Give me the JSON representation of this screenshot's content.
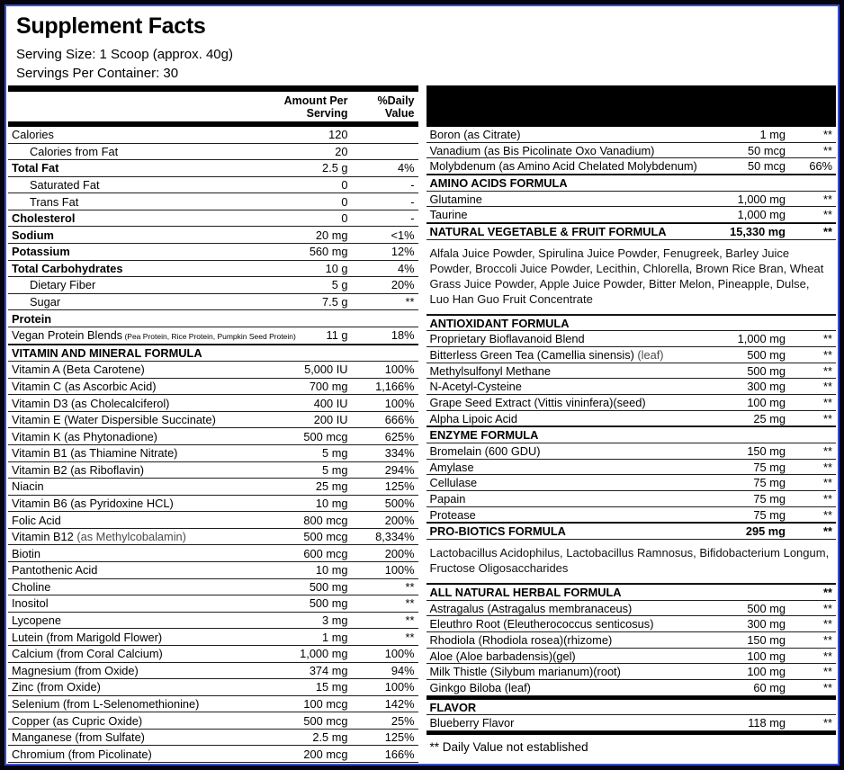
{
  "colors": {
    "border": "#05050f",
    "accent_blue": "#3b4fd0",
    "bar": "#000000"
  },
  "header": {
    "title": "Supplement Facts",
    "serving_size": "Serving Size: 1 Scoop (approx. 40g)",
    "servings_per_container": "Servings Per Container: 30"
  },
  "table": {
    "left": {
      "amount_header": "Amount Per\nServing",
      "dv_header": "%Daily\nValue",
      "rows": [
        {
          "type": "item",
          "name": "Calories",
          "amount": "120",
          "dv": ""
        },
        {
          "type": "item",
          "name": "Calories from Fat",
          "amount": "20",
          "dv": "",
          "indent": true
        },
        {
          "type": "item",
          "name": "Total Fat",
          "amount": "2.5 g",
          "dv": "4%",
          "bold": true
        },
        {
          "type": "item",
          "name": "Saturated Fat",
          "amount": "0",
          "dv": "-",
          "indent": true
        },
        {
          "type": "item",
          "name": "Trans Fat",
          "amount": "0",
          "dv": "-",
          "indent": true
        },
        {
          "type": "item",
          "name": "Cholesterol",
          "amount": "0",
          "dv": "-",
          "bold": true
        },
        {
          "type": "item",
          "name": "Sodium",
          "amount": "20 mg",
          "dv": "<1%",
          "bold": true
        },
        {
          "type": "item",
          "name": "Potassium",
          "amount": "560 mg",
          "dv": "12%",
          "bold": true
        },
        {
          "type": "item",
          "name": "Total Carbohydrates",
          "amount": "10 g",
          "dv": "4%",
          "bold": true
        },
        {
          "type": "item",
          "name": "Dietary Fiber",
          "amount": "5 g",
          "dv": "20%",
          "indent": true
        },
        {
          "type": "item",
          "name": "Sugar",
          "amount": "7.5 g",
          "dv": "**",
          "indent": true
        },
        {
          "type": "item",
          "name": "Protein",
          "amount": "",
          "dv": "",
          "bold": true
        },
        {
          "type": "item",
          "name": "Vegan Protein Blends",
          "small": "(Pea Protein, Rice Protein, Pumpkin Seed Protein)",
          "amount": "11 g",
          "dv": "18%"
        },
        {
          "type": "section",
          "name": "VITAMIN AND MINERAL FORMULA",
          "amount": "",
          "dv": ""
        },
        {
          "type": "item",
          "name": "Vitamin A (Beta Carotene)",
          "amount": "5,000 IU",
          "dv": "100%"
        },
        {
          "type": "item",
          "name": "Vitamin C (as Ascorbic Acid)",
          "amount": "700 mg",
          "dv": "1,166%"
        },
        {
          "type": "item",
          "name": "Vitamin D3 (as Cholecalciferol)",
          "amount": "400 IU",
          "dv": "100%"
        },
        {
          "type": "item",
          "name": "Vitamin E (Water Dispersible Succinate)",
          "amount": "200 IU",
          "dv": "666%"
        },
        {
          "type": "item",
          "name": "Vitamin K (as Phytonadione)",
          "amount": "500 mcg",
          "dv": "625%"
        },
        {
          "type": "item",
          "name": "Vitamin B1 (as Thiamine Nitrate)",
          "amount": "5 mg",
          "dv": "334%"
        },
        {
          "type": "item",
          "name": "Vitamin B2 (as Riboflavin)",
          "amount": "5 mg",
          "dv": "294%"
        },
        {
          "type": "item",
          "name": "Niacin",
          "amount": "25 mg",
          "dv": "125%"
        },
        {
          "type": "item",
          "name": "Vitamin B6 (as Pyridoxine HCL)",
          "amount": "10 mg",
          "dv": "500%"
        },
        {
          "type": "item",
          "name": "Folic Acid",
          "amount": "800 mcg",
          "dv": "200%"
        },
        {
          "type": "item",
          "name": "Vitamin B12",
          "muted": "(as Methylcobalamin)",
          "amount": "500 mcg",
          "dv": "8,334%"
        },
        {
          "type": "item",
          "name": "Biotin",
          "amount": "600 mcg",
          "dv": "200%"
        },
        {
          "type": "item",
          "name": "Pantothenic Acid",
          "amount": "10 mg",
          "dv": "100%"
        },
        {
          "type": "item",
          "name": "Choline",
          "amount": "500 mg",
          "dv": "**"
        },
        {
          "type": "item",
          "name": "Inositol",
          "amount": "500 mg",
          "dv": "**"
        },
        {
          "type": "item",
          "name": "Lycopene",
          "amount": "3 mg",
          "dv": "**"
        },
        {
          "type": "item",
          "name": "Lutein (from Marigold Flower)",
          "amount": "1 mg",
          "dv": "**"
        },
        {
          "type": "item",
          "name": "Calcium (from Coral Calcium)",
          "amount": "1,000 mg",
          "dv": "100%"
        },
        {
          "type": "item",
          "name": "Magnesium (from Oxide)",
          "amount": "374 mg",
          "dv": "94%"
        },
        {
          "type": "item",
          "name": "Zinc (from Oxide)",
          "amount": "15 mg",
          "dv": "100%"
        },
        {
          "type": "item",
          "name": "Selenium (from L-Selenomethionine)",
          "amount": "100 mcg",
          "dv": "142%"
        },
        {
          "type": "item",
          "name": "Copper (as Cupric Oxide)",
          "amount": "500 mcg",
          "dv": "25%"
        },
        {
          "type": "item",
          "name": "Manganese (from Sulfate)",
          "amount": "2.5 mg",
          "dv": "125%"
        },
        {
          "type": "item",
          "name": "Chromium (from Picolinate)",
          "amount": "200 mcg",
          "dv": "166%"
        }
      ]
    },
    "right": {
      "rows": [
        {
          "type": "item",
          "name": "Boron (as Citrate)",
          "amount": "1 mg",
          "dv": "**"
        },
        {
          "type": "item",
          "name": "Vanadium (as Bis Picolinate Oxo Vanadium)",
          "amount": "50 mcg",
          "dv": "**"
        },
        {
          "type": "item",
          "name": "Molybdenum (as Amino Acid Chelated Molybdenum)",
          "amount": "50 mcg",
          "dv": "66%"
        },
        {
          "type": "section",
          "name": "AMINO ACIDS FORMULA",
          "amount": "",
          "dv": ""
        },
        {
          "type": "item",
          "name": "Glutamine",
          "amount": "1,000 mg",
          "dv": "**"
        },
        {
          "type": "item",
          "name": "Taurine",
          "amount": "1,000 mg",
          "dv": "**"
        },
        {
          "type": "section",
          "name": "NATURAL VEGETABLE & FRUIT FORMULA",
          "amount": "15,330 mg",
          "dv": "**"
        },
        {
          "type": "text",
          "text": "Alfala Juice Powder, Spirulina Juice Powder, Fenugreek, Barley Juice Powder, Broccoli Juice Powder, Lecithin, Chlorella, Brown Rice Bran, Wheat Grass Juice Powder, Apple Juice Powder, Bitter Melon, Pineapple, Dulse, Luo Han Guo Fruit Concentrate"
        },
        {
          "type": "section",
          "name": "ANTIOXIDANT FORMULA",
          "amount": "",
          "dv": ""
        },
        {
          "type": "item",
          "name": "Proprietary Bioflavanoid Blend",
          "amount": "1,000 mg",
          "dv": "**"
        },
        {
          "type": "item",
          "name": "Bitterless Green Tea (Camellia sinensis)",
          "muted": "(leaf)",
          "amount": "500 mg",
          "dv": "**"
        },
        {
          "type": "item",
          "name": "Methylsulfonyl Methane",
          "amount": "500 mg",
          "dv": "**"
        },
        {
          "type": "item",
          "name": "N-Acetyl-Cysteine",
          "amount": "300 mg",
          "dv": "**"
        },
        {
          "type": "item",
          "name": "Grape Seed Extract (Vittis vininfera)(seed)",
          "amount": "100 mg",
          "dv": "**"
        },
        {
          "type": "item",
          "name": "Alpha Lipoic Acid",
          "amount": "25 mg",
          "dv": "**"
        },
        {
          "type": "section",
          "name": "ENZYME FORMULA",
          "amount": "",
          "dv": ""
        },
        {
          "type": "item",
          "name": "Bromelain (600 GDU)",
          "amount": "150 mg",
          "dv": "**"
        },
        {
          "type": "item",
          "name": "Amylase",
          "amount": "75 mg",
          "dv": "**"
        },
        {
          "type": "item",
          "name": "Cellulase",
          "amount": "75 mg",
          "dv": "**"
        },
        {
          "type": "item",
          "name": "Papain",
          "amount": "75 mg",
          "dv": "**"
        },
        {
          "type": "item",
          "name": "Protease",
          "amount": "75 mg",
          "dv": "**"
        },
        {
          "type": "section",
          "name": "PRO-BIOTICS FORMULA",
          "amount": "295 mg",
          "dv": "**"
        },
        {
          "type": "text",
          "text": "Lactobacillus Acidophilus, Lactobacillus Ramnosus, Bifidobacterium Longum, Fructose Oligosaccharides"
        },
        {
          "type": "section",
          "name": "ALL NATURAL HERBAL FORMULA",
          "amount": "",
          "dv": "**"
        },
        {
          "type": "item",
          "name": "Astragalus (Astragalus membranaceus)",
          "amount": "500 mg",
          "dv": "**"
        },
        {
          "type": "item",
          "name": "Eleuthro Root (Eleutherococcus senticosus)",
          "amount": "300 mg",
          "dv": "**"
        },
        {
          "type": "item",
          "name": "Rhodiola (Rhodiola rosea)(rhizome)",
          "amount": "150 mg",
          "dv": "**"
        },
        {
          "type": "item",
          "name": "Aloe (Aloe barbadensis)(gel)",
          "amount": "100 mg",
          "dv": "**"
        },
        {
          "type": "item",
          "name": "Milk Thistle (Silybum marianum)(root)",
          "amount": "100 mg",
          "dv": "**"
        },
        {
          "type": "item",
          "name": "Ginkgo Biloba (leaf)",
          "amount": "60 mg",
          "dv": "**"
        },
        {
          "type": "section",
          "name": "FLAVOR",
          "amount": "",
          "dv": "",
          "thick_top": true
        },
        {
          "type": "item",
          "name": "Blueberry Flavor",
          "amount": "118 mg",
          "dv": "**"
        }
      ],
      "footnote": "** Daily Value not established"
    }
  }
}
